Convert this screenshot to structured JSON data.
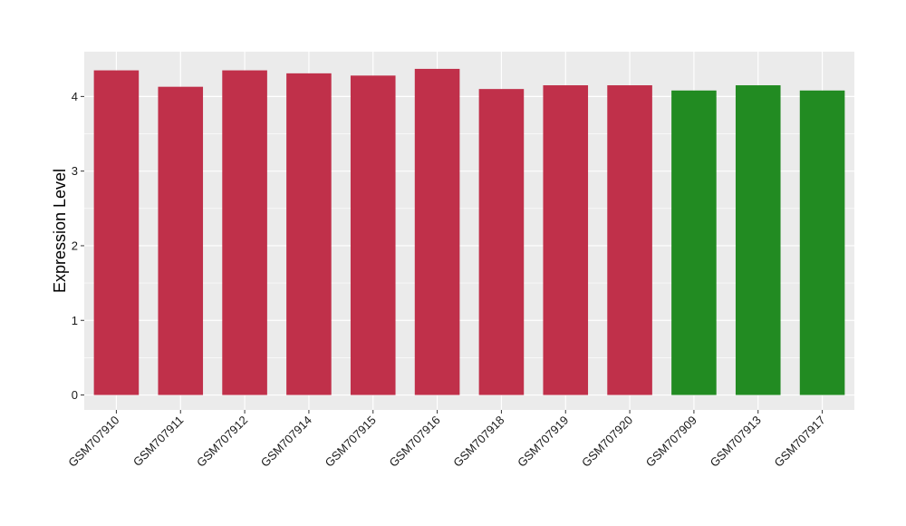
{
  "chart_data": {
    "type": "bar",
    "title": "",
    "xlabel": "",
    "ylabel": "Expression Level",
    "ylim": [
      -0.2,
      4.6
    ],
    "yticks": [
      0,
      1,
      2,
      3,
      4
    ],
    "grid": true,
    "legend": "none",
    "categories": [
      "GSM707910",
      "GSM707911",
      "GSM707912",
      "GSM707914",
      "GSM707915",
      "GSM707916",
      "GSM707918",
      "GSM707919",
      "GSM707920",
      "GSM707909",
      "GSM707913",
      "GSM707917"
    ],
    "values": [
      4.35,
      4.13,
      4.35,
      4.31,
      4.28,
      4.37,
      4.1,
      4.15,
      4.15,
      4.08,
      4.15,
      4.08
    ],
    "bar_colors": [
      "#c0304a",
      "#c0304a",
      "#c0304a",
      "#c0304a",
      "#c0304a",
      "#c0304a",
      "#c0304a",
      "#c0304a",
      "#c0304a",
      "#228b22",
      "#228b22",
      "#228b22"
    ],
    "panel_background": "#ebebeb",
    "gridline_color": "#ffffff"
  }
}
